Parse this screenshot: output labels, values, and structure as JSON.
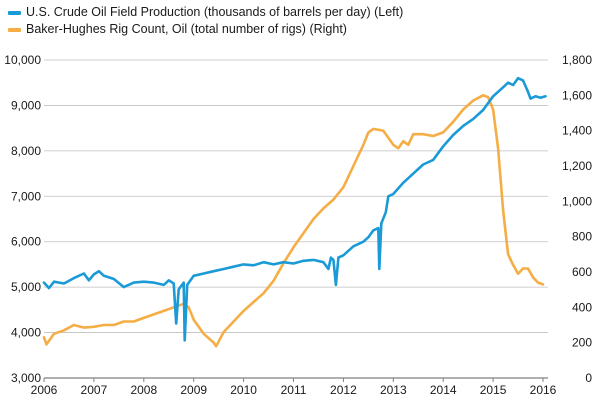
{
  "chart_data": {
    "type": "line",
    "title": "",
    "xlabel": "",
    "legend_position": "top-left",
    "grid": "horizontal",
    "x_ticks": [
      "2006",
      "2007",
      "2008",
      "2009",
      "2010",
      "2011",
      "2012",
      "2013",
      "2014",
      "2015",
      "2016"
    ],
    "x_range": [
      2006,
      2016.1
    ],
    "y_left": {
      "ylim": [
        3000,
        10000
      ],
      "ticks": [
        "3,000",
        "4,000",
        "5,000",
        "6,000",
        "7,000",
        "8,000",
        "9,000",
        "10,000"
      ]
    },
    "y_right": {
      "ylim": [
        0,
        1800
      ],
      "ticks": [
        "0",
        "200",
        "400",
        "600",
        "800",
        "1,000",
        "1,200",
        "1,400",
        "1,600",
        "1,800"
      ]
    },
    "series": [
      {
        "name": "U.S. Crude Oil Field Production (thousands of barrels per day) (Left)",
        "axis": "left",
        "color": "#1a9ad6",
        "points": [
          [
            2006.0,
            5100
          ],
          [
            2006.1,
            4980
          ],
          [
            2006.2,
            5120
          ],
          [
            2006.4,
            5080
          ],
          [
            2006.6,
            5200
          ],
          [
            2006.8,
            5300
          ],
          [
            2006.9,
            5150
          ],
          [
            2007.0,
            5280
          ],
          [
            2007.1,
            5350
          ],
          [
            2007.2,
            5250
          ],
          [
            2007.4,
            5180
          ],
          [
            2007.6,
            5000
          ],
          [
            2007.8,
            5100
          ],
          [
            2008.0,
            5120
          ],
          [
            2008.2,
            5100
          ],
          [
            2008.4,
            5050
          ],
          [
            2008.5,
            5150
          ],
          [
            2008.6,
            5080
          ],
          [
            2008.65,
            4200
          ],
          [
            2008.7,
            4950
          ],
          [
            2008.8,
            5100
          ],
          [
            2008.82,
            3830
          ],
          [
            2008.87,
            5050
          ],
          [
            2009.0,
            5250
          ],
          [
            2009.2,
            5300
          ],
          [
            2009.4,
            5350
          ],
          [
            2009.6,
            5400
          ],
          [
            2009.8,
            5450
          ],
          [
            2010.0,
            5500
          ],
          [
            2010.2,
            5480
          ],
          [
            2010.4,
            5550
          ],
          [
            2010.6,
            5500
          ],
          [
            2010.8,
            5550
          ],
          [
            2011.0,
            5520
          ],
          [
            2011.2,
            5580
          ],
          [
            2011.4,
            5600
          ],
          [
            2011.6,
            5550
          ],
          [
            2011.7,
            5400
          ],
          [
            2011.75,
            5650
          ],
          [
            2011.8,
            5600
          ],
          [
            2011.85,
            5050
          ],
          [
            2011.9,
            5650
          ],
          [
            2012.0,
            5700
          ],
          [
            2012.2,
            5900
          ],
          [
            2012.4,
            6000
          ],
          [
            2012.5,
            6100
          ],
          [
            2012.6,
            6250
          ],
          [
            2012.7,
            6300
          ],
          [
            2012.72,
            5400
          ],
          [
            2012.76,
            6400
          ],
          [
            2012.85,
            6650
          ],
          [
            2012.9,
            7000
          ],
          [
            2013.0,
            7050
          ],
          [
            2013.2,
            7300
          ],
          [
            2013.4,
            7500
          ],
          [
            2013.6,
            7700
          ],
          [
            2013.8,
            7800
          ],
          [
            2014.0,
            8100
          ],
          [
            2014.2,
            8350
          ],
          [
            2014.4,
            8550
          ],
          [
            2014.6,
            8700
          ],
          [
            2014.8,
            8900
          ],
          [
            2015.0,
            9200
          ],
          [
            2015.2,
            9400
          ],
          [
            2015.3,
            9500
          ],
          [
            2015.4,
            9450
          ],
          [
            2015.5,
            9600
          ],
          [
            2015.6,
            9550
          ],
          [
            2015.7,
            9300
          ],
          [
            2015.75,
            9150
          ],
          [
            2015.85,
            9200
          ],
          [
            2015.95,
            9170
          ],
          [
            2016.05,
            9200
          ]
        ]
      },
      {
        "name": "Baker-Hughes Rig Count, Oil (total number of rigs)  (Right)",
        "axis": "right",
        "color": "#f5ad45",
        "points": [
          [
            2006.0,
            230
          ],
          [
            2006.05,
            190
          ],
          [
            2006.2,
            250
          ],
          [
            2006.4,
            270
          ],
          [
            2006.6,
            300
          ],
          [
            2006.8,
            285
          ],
          [
            2007.0,
            290
          ],
          [
            2007.2,
            300
          ],
          [
            2007.4,
            300
          ],
          [
            2007.6,
            320
          ],
          [
            2007.8,
            320
          ],
          [
            2008.0,
            340
          ],
          [
            2008.2,
            360
          ],
          [
            2008.4,
            380
          ],
          [
            2008.6,
            400
          ],
          [
            2008.8,
            420
          ],
          [
            2008.9,
            400
          ],
          [
            2009.0,
            330
          ],
          [
            2009.2,
            250
          ],
          [
            2009.4,
            200
          ],
          [
            2009.45,
            180
          ],
          [
            2009.6,
            260
          ],
          [
            2009.8,
            320
          ],
          [
            2010.0,
            380
          ],
          [
            2010.2,
            430
          ],
          [
            2010.4,
            480
          ],
          [
            2010.6,
            550
          ],
          [
            2010.8,
            650
          ],
          [
            2011.0,
            740
          ],
          [
            2011.2,
            820
          ],
          [
            2011.4,
            900
          ],
          [
            2011.6,
            960
          ],
          [
            2011.8,
            1010
          ],
          [
            2012.0,
            1080
          ],
          [
            2012.2,
            1200
          ],
          [
            2012.4,
            1320
          ],
          [
            2012.5,
            1390
          ],
          [
            2012.6,
            1410
          ],
          [
            2012.8,
            1400
          ],
          [
            2013.0,
            1320
          ],
          [
            2013.1,
            1300
          ],
          [
            2013.2,
            1340
          ],
          [
            2013.3,
            1320
          ],
          [
            2013.4,
            1380
          ],
          [
            2013.6,
            1380
          ],
          [
            2013.8,
            1370
          ],
          [
            2014.0,
            1390
          ],
          [
            2014.2,
            1450
          ],
          [
            2014.4,
            1520
          ],
          [
            2014.6,
            1570
          ],
          [
            2014.8,
            1600
          ],
          [
            2014.9,
            1590
          ],
          [
            2015.0,
            1520
          ],
          [
            2015.1,
            1300
          ],
          [
            2015.2,
            950
          ],
          [
            2015.3,
            700
          ],
          [
            2015.4,
            640
          ],
          [
            2015.5,
            590
          ],
          [
            2015.6,
            620
          ],
          [
            2015.7,
            620
          ],
          [
            2015.8,
            570
          ],
          [
            2015.9,
            540
          ],
          [
            2016.0,
            530
          ]
        ]
      }
    ]
  }
}
